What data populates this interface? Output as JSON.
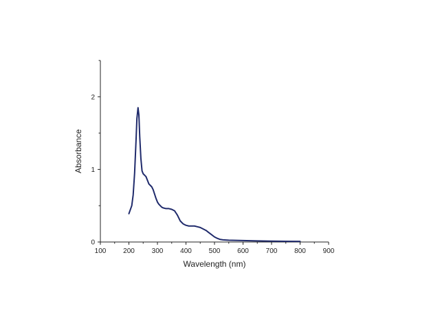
{
  "chart_data": {
    "type": "line",
    "xlabel": "Wavelength (nm)",
    "ylabel": "Absorbance",
    "xlim": [
      100,
      900
    ],
    "ylim": [
      0,
      2.5
    ],
    "x_ticks": [
      100,
      200,
      300,
      400,
      500,
      600,
      700,
      800,
      900
    ],
    "y_ticks": [
      0,
      1,
      2
    ],
    "grid": false,
    "series": [
      {
        "color": "#1f2a6b",
        "x": [
          200,
          210,
          215,
          220,
          225,
          228,
          232,
          235,
          238,
          242,
          246,
          250,
          255,
          260,
          265,
          270,
          275,
          280,
          285,
          290,
          295,
          300,
          305,
          310,
          315,
          320,
          330,
          340,
          350,
          360,
          365,
          370,
          375,
          380,
          385,
          390,
          400,
          410,
          420,
          430,
          440,
          450,
          460,
          470,
          480,
          490,
          500,
          510,
          520,
          530,
          550,
          600,
          650,
          700,
          750,
          800
        ],
        "y": [
          0.39,
          0.5,
          0.65,
          0.95,
          1.4,
          1.7,
          1.85,
          1.75,
          1.45,
          1.15,
          0.98,
          0.94,
          0.92,
          0.9,
          0.85,
          0.8,
          0.78,
          0.76,
          0.72,
          0.66,
          0.6,
          0.55,
          0.52,
          0.5,
          0.48,
          0.47,
          0.46,
          0.46,
          0.45,
          0.43,
          0.4,
          0.37,
          0.33,
          0.29,
          0.27,
          0.25,
          0.23,
          0.22,
          0.22,
          0.22,
          0.21,
          0.2,
          0.18,
          0.16,
          0.13,
          0.1,
          0.07,
          0.05,
          0.035,
          0.03,
          0.025,
          0.02,
          0.015,
          0.012,
          0.01,
          0.008
        ]
      }
    ]
  }
}
